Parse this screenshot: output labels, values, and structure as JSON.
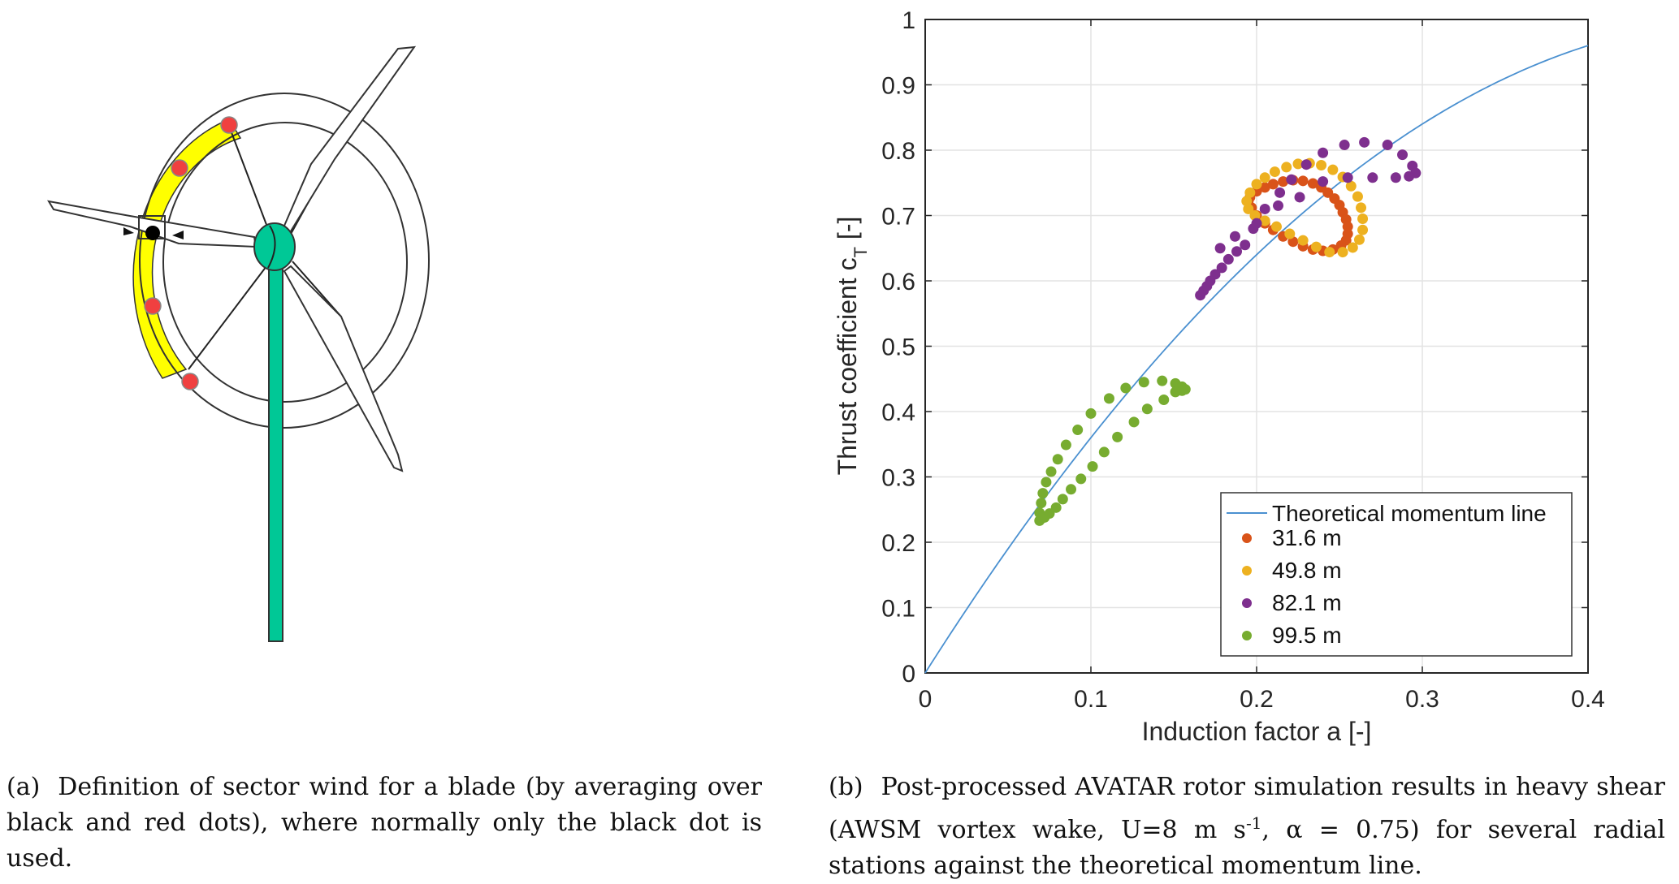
{
  "figure_a": {
    "caption_label": "(a)",
    "caption_text": "Definition of sector wind for a blade (by averaging over black and red dots), where normally only the black dot is used.",
    "colors": {
      "sector": "#ffff00",
      "red_dot": "#f04040",
      "black_dot": "#000000",
      "hub_tower": "#00c896",
      "outline": "#333333"
    }
  },
  "figure_b": {
    "caption_label": "(b)",
    "caption_pre": "Post-processed AVATAR rotor simulation results in heavy shear (AWSM vortex wake, U=8 m s",
    "caption_sup": "-1",
    "caption_post": ", α = 0.75) for several radial stations against the theoretical momentum line."
  },
  "chart_data": {
    "type": "scatter",
    "title": "",
    "xlabel": "Induction factor a [-]",
    "ylabel_main": "Thrust coefficient c",
    "ylabel_sub": "T",
    "ylabel_unit": " [-]",
    "xlim": [
      0,
      0.4
    ],
    "ylim": [
      0,
      1
    ],
    "xticks": [
      0,
      0.1,
      0.2,
      0.3,
      0.4
    ],
    "xtick_labels": [
      "0",
      "0.1",
      "0.2",
      "0.3",
      "0.4"
    ],
    "yticks": [
      0,
      0.1,
      0.2,
      0.3,
      0.4,
      0.5,
      0.6,
      0.7,
      0.8,
      0.9,
      1
    ],
    "ytick_labels": [
      "0",
      "0.1",
      "0.2",
      "0.3",
      "0.4",
      "0.5",
      "0.6",
      "0.7",
      "0.8",
      "0.9",
      "1"
    ],
    "grid": true,
    "legend_position": "bottom-right",
    "line": {
      "name": "Theoretical momentum line",
      "formula": "4a(1-a)",
      "color": "#4a90d0"
    },
    "series": [
      {
        "name": "31.6 m",
        "color": "#d95319",
        "points": [
          [
            0.196,
            0.728
          ],
          [
            0.2,
            0.737
          ],
          [
            0.205,
            0.743
          ],
          [
            0.21,
            0.748
          ],
          [
            0.216,
            0.752
          ],
          [
            0.222,
            0.754
          ],
          [
            0.228,
            0.753
          ],
          [
            0.234,
            0.749
          ],
          [
            0.239,
            0.743
          ],
          [
            0.243,
            0.735
          ],
          [
            0.247,
            0.726
          ],
          [
            0.25,
            0.716
          ],
          [
            0.252,
            0.705
          ],
          [
            0.254,
            0.694
          ],
          [
            0.255,
            0.683
          ],
          [
            0.255,
            0.672
          ],
          [
            0.254,
            0.662
          ],
          [
            0.251,
            0.654
          ],
          [
            0.246,
            0.648
          ],
          [
            0.24,
            0.646
          ],
          [
            0.234,
            0.648
          ],
          [
            0.228,
            0.653
          ],
          [
            0.222,
            0.66
          ],
          [
            0.216,
            0.668
          ],
          [
            0.21,
            0.678
          ],
          [
            0.205,
            0.688
          ],
          [
            0.2,
            0.7
          ],
          [
            0.197,
            0.712
          ],
          [
            0.195,
            0.722
          ]
        ]
      },
      {
        "name": "49.8 m",
        "color": "#edb120",
        "points": [
          [
            0.194,
            0.722
          ],
          [
            0.196,
            0.735
          ],
          [
            0.2,
            0.748
          ],
          [
            0.205,
            0.758
          ],
          [
            0.211,
            0.767
          ],
          [
            0.218,
            0.774
          ],
          [
            0.225,
            0.779
          ],
          [
            0.232,
            0.78
          ],
          [
            0.239,
            0.777
          ],
          [
            0.246,
            0.77
          ],
          [
            0.252,
            0.759
          ],
          [
            0.257,
            0.745
          ],
          [
            0.261,
            0.729
          ],
          [
            0.263,
            0.712
          ],
          [
            0.264,
            0.695
          ],
          [
            0.264,
            0.678
          ],
          [
            0.262,
            0.663
          ],
          [
            0.258,
            0.651
          ],
          [
            0.252,
            0.644
          ],
          [
            0.244,
            0.644
          ],
          [
            0.236,
            0.652
          ],
          [
            0.228,
            0.662
          ],
          [
            0.22,
            0.672
          ],
          [
            0.212,
            0.683
          ],
          [
            0.205,
            0.692
          ],
          [
            0.199,
            0.7
          ],
          [
            0.195,
            0.71
          ]
        ]
      },
      {
        "name": "82.1 m",
        "color": "#7e2f8e",
        "points": [
          [
            0.166,
            0.578
          ],
          [
            0.168,
            0.585
          ],
          [
            0.17,
            0.592
          ],
          [
            0.172,
            0.6
          ],
          [
            0.175,
            0.61
          ],
          [
            0.179,
            0.62
          ],
          [
            0.183,
            0.633
          ],
          [
            0.188,
            0.645
          ],
          [
            0.193,
            0.655
          ],
          [
            0.198,
            0.68
          ],
          [
            0.205,
            0.71
          ],
          [
            0.214,
            0.735
          ],
          [
            0.221,
            0.755
          ],
          [
            0.23,
            0.778
          ],
          [
            0.24,
            0.796
          ],
          [
            0.253,
            0.808
          ],
          [
            0.265,
            0.812
          ],
          [
            0.279,
            0.808
          ],
          [
            0.288,
            0.793
          ],
          [
            0.294,
            0.776
          ],
          [
            0.296,
            0.765
          ],
          [
            0.292,
            0.76
          ],
          [
            0.284,
            0.758
          ],
          [
            0.27,
            0.758
          ],
          [
            0.255,
            0.758
          ],
          [
            0.24,
            0.752
          ],
          [
            0.226,
            0.728
          ],
          [
            0.213,
            0.715
          ],
          [
            0.2,
            0.688
          ],
          [
            0.187,
            0.668
          ],
          [
            0.178,
            0.65
          ]
        ]
      },
      {
        "name": "99.5 m",
        "color": "#77ac30",
        "points": [
          [
            0.069,
            0.233
          ],
          [
            0.069,
            0.245
          ],
          [
            0.07,
            0.26
          ],
          [
            0.071,
            0.275
          ],
          [
            0.073,
            0.292
          ],
          [
            0.076,
            0.308
          ],
          [
            0.08,
            0.327
          ],
          [
            0.085,
            0.349
          ],
          [
            0.092,
            0.372
          ],
          [
            0.1,
            0.397
          ],
          [
            0.111,
            0.42
          ],
          [
            0.121,
            0.436
          ],
          [
            0.132,
            0.445
          ],
          [
            0.143,
            0.447
          ],
          [
            0.151,
            0.443
          ],
          [
            0.155,
            0.438
          ],
          [
            0.157,
            0.434
          ],
          [
            0.155,
            0.432
          ],
          [
            0.151,
            0.43
          ],
          [
            0.144,
            0.418
          ],
          [
            0.134,
            0.404
          ],
          [
            0.126,
            0.384
          ],
          [
            0.116,
            0.361
          ],
          [
            0.108,
            0.338
          ],
          [
            0.101,
            0.316
          ],
          [
            0.094,
            0.297
          ],
          [
            0.088,
            0.281
          ],
          [
            0.083,
            0.266
          ],
          [
            0.079,
            0.253
          ],
          [
            0.075,
            0.244
          ],
          [
            0.072,
            0.238
          ],
          [
            0.07,
            0.236
          ]
        ]
      }
    ]
  }
}
